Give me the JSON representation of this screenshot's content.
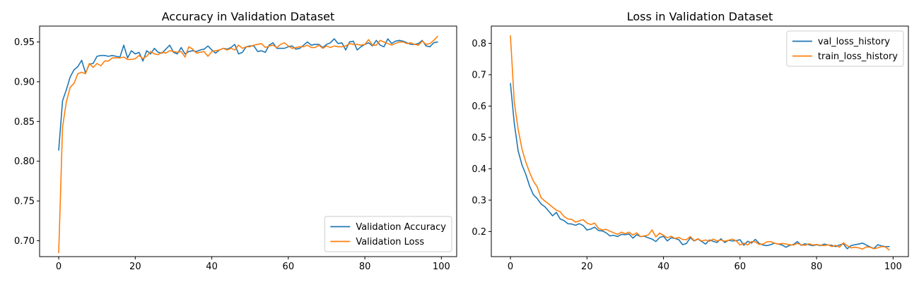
{
  "chart_data": [
    {
      "type": "line",
      "title": "Accuracy in Validation Dataset",
      "xlabel": "",
      "ylabel": "",
      "xlim": [
        -5,
        104
      ],
      "ylim": [
        0.68,
        0.97
      ],
      "xticks": [
        0,
        20,
        40,
        60,
        80,
        100
      ],
      "yticks": [
        0.7,
        0.75,
        0.8,
        0.85,
        0.9,
        0.95
      ],
      "ytick_labels": [
        "0.70",
        "0.75",
        "0.80",
        "0.85",
        "0.90",
        "0.95"
      ],
      "grid": false,
      "legend_position": "lower right",
      "x": [
        0,
        1,
        2,
        3,
        4,
        5,
        6,
        7,
        8,
        9,
        10,
        11,
        12,
        13,
        14,
        15,
        16,
        17,
        18,
        19,
        20,
        21,
        22,
        23,
        24,
        25,
        26,
        27,
        28,
        29,
        30,
        31,
        32,
        33,
        34,
        35,
        36,
        37,
        38,
        39,
        40,
        41,
        42,
        43,
        44,
        45,
        46,
        47,
        48,
        49,
        50,
        51,
        52,
        53,
        54,
        55,
        56,
        57,
        58,
        59,
        60,
        61,
        62,
        63,
        64,
        65,
        66,
        67,
        68,
        69,
        70,
        71,
        72,
        73,
        74,
        75,
        76,
        77,
        78,
        79,
        80,
        81,
        82,
        83,
        84,
        85,
        86,
        87,
        88,
        89,
        90,
        91,
        92,
        93,
        94,
        95,
        96,
        97,
        98,
        99
      ],
      "series": [
        {
          "name": "Validation Accuracy",
          "color": "#1f77b4",
          "values": [
            0.814,
            0.876,
            0.89,
            0.906,
            0.915,
            0.919,
            0.927,
            0.911,
            0.922,
            0.923,
            0.932,
            0.933,
            0.933,
            0.932,
            0.933,
            0.932,
            0.931,
            0.946,
            0.93,
            0.939,
            0.935,
            0.937,
            0.926,
            0.939,
            0.935,
            0.942,
            0.937,
            0.936,
            0.941,
            0.946,
            0.937,
            0.935,
            0.943,
            0.935,
            0.938,
            0.939,
            0.938,
            0.94,
            0.941,
            0.945,
            0.94,
            0.936,
            0.94,
            0.942,
            0.941,
            0.943,
            0.947,
            0.935,
            0.937,
            0.944,
            0.945,
            0.945,
            0.938,
            0.939,
            0.937,
            0.946,
            0.949,
            0.942,
            0.942,
            0.942,
            0.944,
            0.945,
            0.941,
            0.942,
            0.946,
            0.95,
            0.946,
            0.947,
            0.947,
            0.943,
            0.947,
            0.949,
            0.954,
            0.948,
            0.949,
            0.94,
            0.95,
            0.951,
            0.94,
            0.944,
            0.947,
            0.949,
            0.945,
            0.952,
            0.946,
            0.944,
            0.954,
            0.948,
            0.951,
            0.952,
            0.951,
            0.949,
            0.947,
            0.947,
            0.948,
            0.952,
            0.945,
            0.944,
            0.949,
            0.95
          ]
        },
        {
          "name": "Validation Loss",
          "color": "#ff7f0e",
          "values": [
            0.685,
            0.843,
            0.875,
            0.893,
            0.898,
            0.91,
            0.912,
            0.91,
            0.923,
            0.918,
            0.923,
            0.92,
            0.926,
            0.926,
            0.93,
            0.93,
            0.93,
            0.931,
            0.928,
            0.928,
            0.929,
            0.933,
            0.929,
            0.932,
            0.938,
            0.935,
            0.934,
            0.937,
            0.936,
            0.939,
            0.938,
            0.937,
            0.938,
            0.931,
            0.944,
            0.941,
            0.936,
            0.937,
            0.938,
            0.932,
            0.938,
            0.939,
            0.94,
            0.942,
            0.94,
            0.942,
            0.94,
            0.946,
            0.942,
            0.944,
            0.944,
            0.946,
            0.947,
            0.948,
            0.943,
            0.945,
            0.946,
            0.943,
            0.947,
            0.949,
            0.945,
            0.942,
            0.943,
            0.944,
            0.944,
            0.946,
            0.943,
            0.943,
            0.946,
            0.942,
            0.945,
            0.943,
            0.945,
            0.944,
            0.944,
            0.945,
            0.948,
            0.947,
            0.947,
            0.946,
            0.947,
            0.953,
            0.946,
            0.946,
            0.952,
            0.95,
            0.948,
            0.946,
            0.948,
            0.95,
            0.95,
            0.948,
            0.949,
            0.947,
            0.946,
            0.951,
            0.947,
            0.948,
            0.952,
            0.957
          ]
        }
      ]
    },
    {
      "type": "line",
      "title": "Loss in Validation Dataset",
      "xlabel": "",
      "ylabel": "",
      "xlim": [
        -5,
        104
      ],
      "ylim": [
        0.12,
        0.855
      ],
      "xticks": [
        0,
        20,
        40,
        60,
        80,
        100
      ],
      "yticks": [
        0.2,
        0.3,
        0.4,
        0.5,
        0.6,
        0.7,
        0.8
      ],
      "ytick_labels": [
        "0.2",
        "0.3",
        "0.4",
        "0.5",
        "0.6",
        "0.7",
        "0.8"
      ],
      "grid": false,
      "legend_position": "upper right",
      "x": [
        0,
        1,
        2,
        3,
        4,
        5,
        6,
        7,
        8,
        9,
        10,
        11,
        12,
        13,
        14,
        15,
        16,
        17,
        18,
        19,
        20,
        21,
        22,
        23,
        24,
        25,
        26,
        27,
        28,
        29,
        30,
        31,
        32,
        33,
        34,
        35,
        36,
        37,
        38,
        39,
        40,
        41,
        42,
        43,
        44,
        45,
        46,
        47,
        48,
        49,
        50,
        51,
        52,
        53,
        54,
        55,
        56,
        57,
        58,
        59,
        60,
        61,
        62,
        63,
        64,
        65,
        66,
        67,
        68,
        69,
        70,
        71,
        72,
        73,
        74,
        75,
        76,
        77,
        78,
        79,
        80,
        81,
        82,
        83,
        84,
        85,
        86,
        87,
        88,
        89,
        90,
        91,
        92,
        93,
        94,
        95,
        96,
        97,
        98,
        99
      ],
      "series": [
        {
          "name": "val_loss_history",
          "color": "#1f77b4",
          "values": [
            0.672,
            0.545,
            0.458,
            0.413,
            0.383,
            0.345,
            0.317,
            0.305,
            0.288,
            0.279,
            0.265,
            0.25,
            0.261,
            0.24,
            0.235,
            0.225,
            0.224,
            0.22,
            0.225,
            0.219,
            0.205,
            0.208,
            0.214,
            0.203,
            0.202,
            0.196,
            0.186,
            0.188,
            0.184,
            0.191,
            0.19,
            0.192,
            0.179,
            0.19,
            0.184,
            0.185,
            0.18,
            0.176,
            0.168,
            0.181,
            0.185,
            0.17,
            0.18,
            0.178,
            0.174,
            0.158,
            0.162,
            0.18,
            0.17,
            0.176,
            0.168,
            0.16,
            0.173,
            0.169,
            0.165,
            0.177,
            0.165,
            0.172,
            0.17,
            0.171,
            0.174,
            0.156,
            0.169,
            0.163,
            0.175,
            0.162,
            0.157,
            0.155,
            0.158,
            0.163,
            0.16,
            0.157,
            0.15,
            0.156,
            0.159,
            0.168,
            0.156,
            0.161,
            0.158,
            0.155,
            0.158,
            0.155,
            0.16,
            0.157,
            0.156,
            0.152,
            0.157,
            0.161,
            0.145,
            0.155,
            0.158,
            0.16,
            0.163,
            0.157,
            0.151,
            0.146,
            0.158,
            0.154,
            0.152,
            0.152
          ]
        },
        {
          "name": "train_loss_history",
          "color": "#ff7f0e",
          "values": [
            0.824,
            0.613,
            0.527,
            0.464,
            0.422,
            0.389,
            0.361,
            0.342,
            0.308,
            0.297,
            0.288,
            0.278,
            0.268,
            0.263,
            0.248,
            0.24,
            0.239,
            0.23,
            0.234,
            0.238,
            0.227,
            0.222,
            0.227,
            0.21,
            0.205,
            0.207,
            0.201,
            0.196,
            0.191,
            0.198,
            0.193,
            0.198,
            0.189,
            0.196,
            0.184,
            0.186,
            0.189,
            0.205,
            0.183,
            0.195,
            0.188,
            0.18,
            0.185,
            0.178,
            0.181,
            0.175,
            0.174,
            0.184,
            0.171,
            0.177,
            0.17,
            0.173,
            0.169,
            0.176,
            0.17,
            0.173,
            0.169,
            0.172,
            0.176,
            0.17,
            0.157,
            0.163,
            0.157,
            0.168,
            0.167,
            0.159,
            0.16,
            0.167,
            0.168,
            0.163,
            0.16,
            0.162,
            0.16,
            0.158,
            0.157,
            0.162,
            0.158,
            0.156,
            0.161,
            0.157,
            0.159,
            0.156,
            0.155,
            0.158,
            0.152,
            0.156,
            0.15,
            0.164,
            0.155,
            0.148,
            0.15,
            0.148,
            0.144,
            0.151,
            0.15,
            0.145,
            0.148,
            0.152,
            0.151,
            0.141
          ]
        }
      ]
    }
  ]
}
